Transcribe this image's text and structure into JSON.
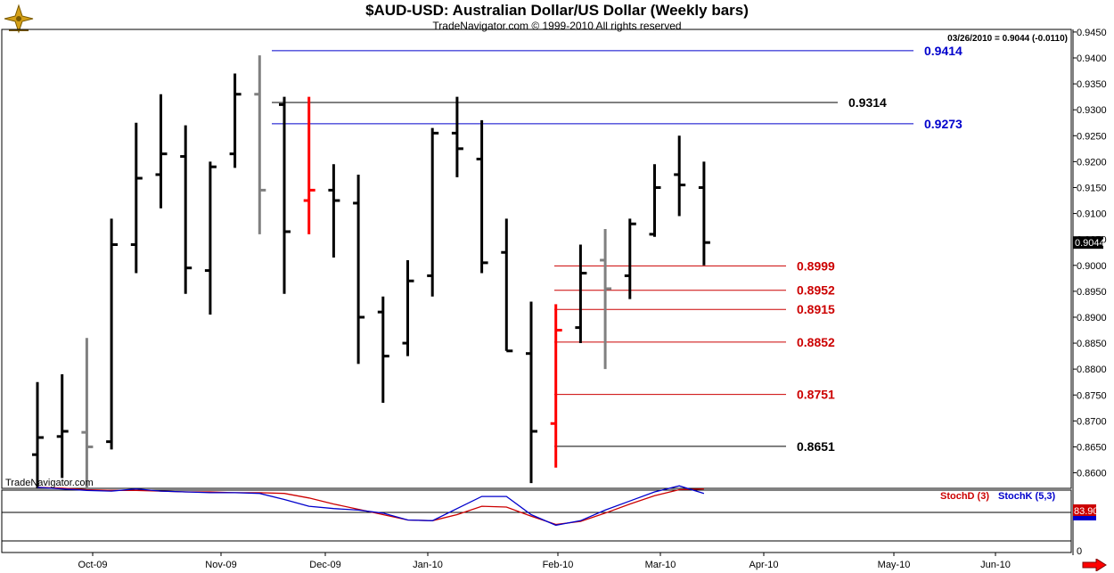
{
  "header": {
    "title": "$AUD-USD:  Australian Dollar/US Dollar  (Weekly bars)",
    "subtitle": "TradeNavigator.com © 1999-2010 All rights reserved",
    "watermark": "TradeNavigator.com"
  },
  "chart_data": [
    {
      "type": "ohlc",
      "title": "$AUD-USD:  Australian Dollar/US Dollar  (Weekly bars)",
      "subtitle": "TradeNavigator.com © 1999-2010 All rights reserved",
      "readout": "03/26/2010 = 0.9044 (-0.0110)",
      "current_price_tag": "0.9044",
      "price_axis": {
        "range": [
          0.857,
          0.9455
        ],
        "ticks": [
          "0.9450",
          "0.9400",
          "0.9350",
          "0.9300",
          "0.9250",
          "0.9200",
          "0.9150",
          "0.9100",
          "0.9050",
          "0.9000",
          "0.8950",
          "0.8900",
          "0.8850",
          "0.8800",
          "0.8750",
          "0.8700",
          "0.8650",
          "0.8600"
        ]
      },
      "x_axis_labels": [
        "Oct-09",
        "Nov-09",
        "Dec-09",
        "Jan-10",
        "Feb-10",
        "Mar-10",
        "Apr-10",
        "May-10",
        "Jun-10"
      ],
      "grid": false,
      "bars": [
        {
          "week": 0,
          "open": 0.8635,
          "high": 0.8775,
          "low": 0.857,
          "close": 0.8668,
          "color": "#000000"
        },
        {
          "week": 1,
          "open": 0.867,
          "high": 0.879,
          "low": 0.859,
          "close": 0.868,
          "color": "#000000"
        },
        {
          "week": 2,
          "open": 0.8678,
          "high": 0.886,
          "low": 0.857,
          "close": 0.865,
          "color": "#808080"
        },
        {
          "week": 3,
          "open": 0.866,
          "high": 0.909,
          "low": 0.8645,
          "close": 0.904,
          "color": "#000000"
        },
        {
          "week": 4,
          "open": 0.904,
          "high": 0.9275,
          "low": 0.8985,
          "close": 0.9168,
          "color": "#000000"
        },
        {
          "week": 5,
          "open": 0.9175,
          "high": 0.933,
          "low": 0.911,
          "close": 0.9215,
          "color": "#000000"
        },
        {
          "week": 6,
          "open": 0.921,
          "high": 0.927,
          "low": 0.8945,
          "close": 0.8995,
          "color": "#000000"
        },
        {
          "week": 7,
          "open": 0.899,
          "high": 0.92,
          "low": 0.8905,
          "close": 0.919,
          "color": "#000000"
        },
        {
          "week": 8,
          "open": 0.9215,
          "high": 0.937,
          "low": 0.9188,
          "close": 0.933,
          "color": "#000000"
        },
        {
          "week": 9,
          "open": 0.933,
          "high": 0.9405,
          "low": 0.906,
          "close": 0.9145,
          "color": "#808080"
        },
        {
          "week": 10,
          "open": 0.931,
          "high": 0.9325,
          "low": 0.8945,
          "close": 0.9065,
          "color": "#000000"
        },
        {
          "week": 11,
          "open": 0.9125,
          "high": 0.9325,
          "low": 0.906,
          "close": 0.9145,
          "color": "#ff0000"
        },
        {
          "week": 12,
          "open": 0.9145,
          "high": 0.9195,
          "low": 0.9015,
          "close": 0.9125,
          "color": "#000000"
        },
        {
          "week": 13,
          "open": 0.912,
          "high": 0.9175,
          "low": 0.881,
          "close": 0.89,
          "color": "#000000"
        },
        {
          "week": 14,
          "open": 0.891,
          "high": 0.894,
          "low": 0.8735,
          "close": 0.8825,
          "color": "#000000"
        },
        {
          "week": 15,
          "open": 0.885,
          "high": 0.901,
          "low": 0.8825,
          "close": 0.897,
          "color": "#000000"
        },
        {
          "week": 16,
          "open": 0.898,
          "high": 0.9265,
          "low": 0.894,
          "close": 0.9255,
          "color": "#000000"
        },
        {
          "week": 17,
          "open": 0.9255,
          "high": 0.9325,
          "low": 0.917,
          "close": 0.9225,
          "color": "#000000"
        },
        {
          "week": 18,
          "open": 0.9205,
          "high": 0.928,
          "low": 0.8985,
          "close": 0.9005,
          "color": "#000000"
        },
        {
          "week": 19,
          "open": 0.9025,
          "high": 0.909,
          "low": 0.8835,
          "close": 0.8835,
          "color": "#000000"
        },
        {
          "week": 20,
          "open": 0.883,
          "high": 0.893,
          "low": 0.858,
          "close": 0.868,
          "color": "#000000"
        },
        {
          "week": 21,
          "open": 0.8695,
          "high": 0.8925,
          "low": 0.861,
          "close": 0.8875,
          "color": "#ff0000"
        },
        {
          "week": 22,
          "open": 0.888,
          "high": 0.904,
          "low": 0.885,
          "close": 0.8985,
          "color": "#000000"
        },
        {
          "week": 23,
          "open": 0.901,
          "high": 0.907,
          "low": 0.88,
          "close": 0.8955,
          "color": "#808080"
        },
        {
          "week": 24,
          "open": 0.898,
          "high": 0.909,
          "low": 0.8935,
          "close": 0.908,
          "color": "#000000"
        },
        {
          "week": 25,
          "open": 0.906,
          "high": 0.9195,
          "low": 0.9055,
          "close": 0.915,
          "color": "#000000"
        },
        {
          "week": 26,
          "open": 0.9175,
          "high": 0.925,
          "low": 0.9095,
          "close": 0.9155,
          "color": "#000000"
        },
        {
          "week": 27,
          "open": 0.915,
          "high": 0.92,
          "low": 0.9,
          "close": 0.9044,
          "color": "#000000"
        }
      ],
      "levels": [
        {
          "label": "0.9414",
          "value": 0.9414,
          "color": "#0000cc"
        },
        {
          "label": "0.9314",
          "value": 0.9314,
          "color": "#000000"
        },
        {
          "label": "0.9273",
          "value": 0.9273,
          "color": "#0000cc"
        },
        {
          "label": "0.8999",
          "value": 0.8999,
          "color": "#cc0000"
        },
        {
          "label": "0.8952",
          "value": 0.8952,
          "color": "#cc0000"
        },
        {
          "label": "0.8915",
          "value": 0.8915,
          "color": "#cc0000"
        },
        {
          "label": "0.8852",
          "value": 0.8852,
          "color": "#cc0000"
        },
        {
          "label": "0.8751",
          "value": 0.8751,
          "color": "#cc0000"
        },
        {
          "label": "0.8651",
          "value": 0.8651,
          "color": "#000000"
        }
      ]
    },
    {
      "type": "line",
      "legend": [
        "StochD (3)",
        "StochK (5,3)"
      ],
      "y_range": [
        0,
        100
      ],
      "y_tick_labels": [
        "0"
      ],
      "current_value_tag": "83.90",
      "series": [
        {
          "name": "StochD (3)",
          "color": "#cc0000",
          "values": [
            86,
            85,
            83,
            82,
            82,
            81,
            80,
            80,
            79,
            79,
            78,
            72,
            64,
            57,
            50,
            43,
            42,
            50,
            61,
            60,
            48,
            37,
            41,
            52,
            64,
            75,
            83,
            84
          ]
        },
        {
          "name": "StochK (5,3)",
          "color": "#0000cc",
          "values": [
            86,
            84,
            82,
            81,
            84,
            81,
            80,
            79,
            79,
            78,
            70,
            61,
            58,
            56,
            52,
            43,
            42,
            58,
            74,
            74,
            50,
            36,
            42,
            56,
            68,
            80,
            88,
            78
          ]
        }
      ]
    }
  ]
}
